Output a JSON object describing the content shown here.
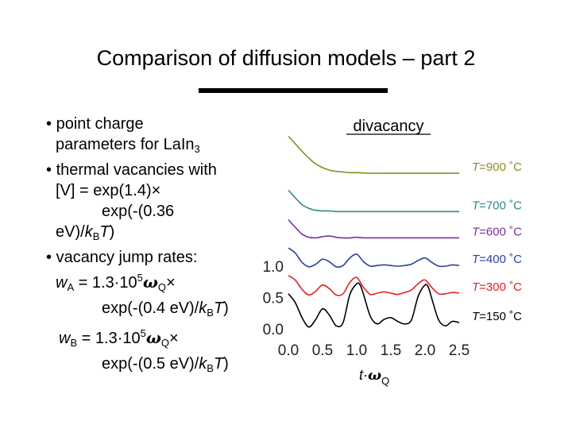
{
  "slide": {
    "title": "Comparison of diffusion models – part 2"
  },
  "bullets": {
    "b1_bullet": "•",
    "b1_text": "point charge",
    "b1_line2": "parameters for LaIn",
    "b1_line2_sub": "3",
    "b2_bullet": "•",
    "b2_text": "thermal vacancies with",
    "b2_line2": "[V] = exp(1.4)×",
    "b2_line3": "exp(-(0.36",
    "b2_line4_a": "eV)/",
    "b2_line4_k": "k",
    "b2_line4_sub": "B",
    "b2_line4_T": "T",
    "b2_line4_end": ")",
    "b3_bullet": "•",
    "b3_text": "vacancy jump rates:",
    "wa_w": "w",
    "wa_sub": "A",
    "wa_eq": " = 1.3·10",
    "wa_exp": "5",
    "wa_omega": "ω",
    "wa_omega_sub": "Q",
    "wa_times": "×",
    "wa_line2_a": "exp(-(0.4 eV)/",
    "wa_k": "k",
    "wa_ksub": "B",
    "wa_T": "T",
    "wa_end": ")",
    "wb_w": "w",
    "wb_sub": "B",
    "wb_eq": " = 1.3·10",
    "wb_exp": "5",
    "wb_omega": "ω",
    "wb_omega_sub": "Q",
    "wb_times": "×",
    "wb_line2_a": "exp(-(0.5 eV)/",
    "wb_k": "k",
    "wb_ksub": "B",
    "wb_T": "T",
    "wb_end": ")"
  },
  "chart_data": {
    "type": "line",
    "title": "divacancy",
    "xlabel": "t·ωQ",
    "xlabel_parts": {
      "t": "t",
      "dot": "·",
      "omega": "ω",
      "sub": "Q"
    },
    "x_ticks": [
      "0.0",
      "0.5",
      "1.0",
      "1.5",
      "2.0",
      "2.5"
    ],
    "y_ticks": [
      "0.0",
      "0.5",
      "1.0"
    ],
    "xlim": [
      0,
      2.5
    ],
    "ylim": [
      0,
      1.0
    ],
    "series": [
      {
        "name": "T=900 °C",
        "label_T": "T",
        "label_rest": "=900 ˚C",
        "color": "#8c8c1e",
        "offset": 2.45,
        "x": [
          0.0,
          0.1,
          0.2,
          0.3,
          0.4,
          0.5,
          0.6,
          0.7,
          0.8,
          0.9,
          1.0,
          1.2,
          1.4,
          1.6,
          1.8,
          2.0,
          2.2,
          2.5
        ],
        "y": [
          0.62,
          0.5,
          0.38,
          0.27,
          0.18,
          0.12,
          0.08,
          0.06,
          0.05,
          0.04,
          0.04,
          0.03,
          0.03,
          0.03,
          0.03,
          0.03,
          0.03,
          0.03
        ]
      },
      {
        "name": "T=700 °C",
        "label_T": "T",
        "label_rest": "=700 ˚C",
        "color": "#2e8b82",
        "offset": 1.83,
        "x": [
          0.0,
          0.1,
          0.2,
          0.3,
          0.4,
          0.5,
          0.6,
          0.7,
          0.8,
          0.9,
          1.0,
          1.2,
          1.4,
          1.6,
          1.8,
          2.0,
          2.2,
          2.5
        ],
        "y": [
          0.38,
          0.26,
          0.15,
          0.09,
          0.06,
          0.05,
          0.05,
          0.04,
          0.04,
          0.04,
          0.04,
          0.04,
          0.04,
          0.04,
          0.04,
          0.04,
          0.04,
          0.04
        ]
      },
      {
        "name": "T=600 °C",
        "label_T": "T",
        "label_rest": "=600 ˚C",
        "color": "#7b2fa0",
        "offset": 1.42,
        "x": [
          0.0,
          0.1,
          0.2,
          0.3,
          0.4,
          0.5,
          0.6,
          0.7,
          0.8,
          0.9,
          1.0,
          1.1,
          1.2,
          1.3,
          1.4,
          1.5,
          1.6,
          1.7,
          1.8,
          1.9,
          2.0,
          2.1,
          2.2,
          2.3,
          2.4,
          2.5
        ],
        "y": [
          0.32,
          0.2,
          0.09,
          0.04,
          0.03,
          0.05,
          0.06,
          0.04,
          0.03,
          0.03,
          0.04,
          0.03,
          0.03,
          0.03,
          0.03,
          0.03,
          0.03,
          0.03,
          0.03,
          0.03,
          0.03,
          0.03,
          0.03,
          0.03,
          0.03,
          0.03
        ]
      },
      {
        "name": "T=400 °C",
        "label_T": "T",
        "label_rest": "=400 ˚C",
        "color": "#2a3f9c",
        "offset": 0.93,
        "x": [
          0.0,
          0.1,
          0.2,
          0.3,
          0.4,
          0.5,
          0.6,
          0.7,
          0.8,
          0.9,
          1.0,
          1.1,
          1.2,
          1.3,
          1.4,
          1.5,
          1.6,
          1.7,
          1.8,
          1.9,
          2.0,
          2.1,
          2.2,
          2.3,
          2.4,
          2.5
        ],
        "y": [
          0.36,
          0.28,
          0.13,
          0.06,
          0.1,
          0.18,
          0.14,
          0.06,
          0.08,
          0.2,
          0.26,
          0.14,
          0.07,
          0.08,
          0.09,
          0.08,
          0.07,
          0.08,
          0.1,
          0.16,
          0.2,
          0.13,
          0.07,
          0.07,
          0.09,
          0.08
        ]
      },
      {
        "name": "T=300 °C",
        "label_T": "T",
        "label_rest": "=300 ˚C",
        "color": "#e02020",
        "offset": 0.48,
        "x": [
          0.0,
          0.1,
          0.2,
          0.3,
          0.4,
          0.5,
          0.6,
          0.7,
          0.8,
          0.9,
          1.0,
          1.1,
          1.2,
          1.3,
          1.4,
          1.5,
          1.6,
          1.7,
          1.8,
          1.9,
          2.0,
          2.1,
          2.2,
          2.3,
          2.4,
          2.5
        ],
        "y": [
          0.37,
          0.3,
          0.15,
          0.06,
          0.12,
          0.22,
          0.16,
          0.06,
          0.08,
          0.26,
          0.34,
          0.18,
          0.07,
          0.09,
          0.11,
          0.09,
          0.07,
          0.1,
          0.14,
          0.24,
          0.3,
          0.18,
          0.08,
          0.08,
          0.1,
          0.09
        ]
      },
      {
        "name": "T=150 °C",
        "label_T": "T",
        "label_rest": "=150 ˚C",
        "color": "#000000",
        "offset": 0.0,
        "x": [
          0.0,
          0.1,
          0.2,
          0.3,
          0.4,
          0.5,
          0.6,
          0.7,
          0.8,
          0.9,
          1.0,
          1.05,
          1.1,
          1.2,
          1.3,
          1.4,
          1.5,
          1.6,
          1.7,
          1.8,
          1.9,
          2.0,
          2.05,
          2.1,
          2.2,
          2.3,
          2.4,
          2.5
        ],
        "y": [
          0.56,
          0.42,
          0.18,
          0.03,
          0.15,
          0.32,
          0.22,
          0.05,
          0.1,
          0.55,
          0.72,
          0.7,
          0.55,
          0.2,
          0.08,
          0.15,
          0.18,
          0.12,
          0.08,
          0.14,
          0.52,
          0.7,
          0.66,
          0.48,
          0.14,
          0.05,
          0.12,
          0.1
        ]
      }
    ]
  }
}
